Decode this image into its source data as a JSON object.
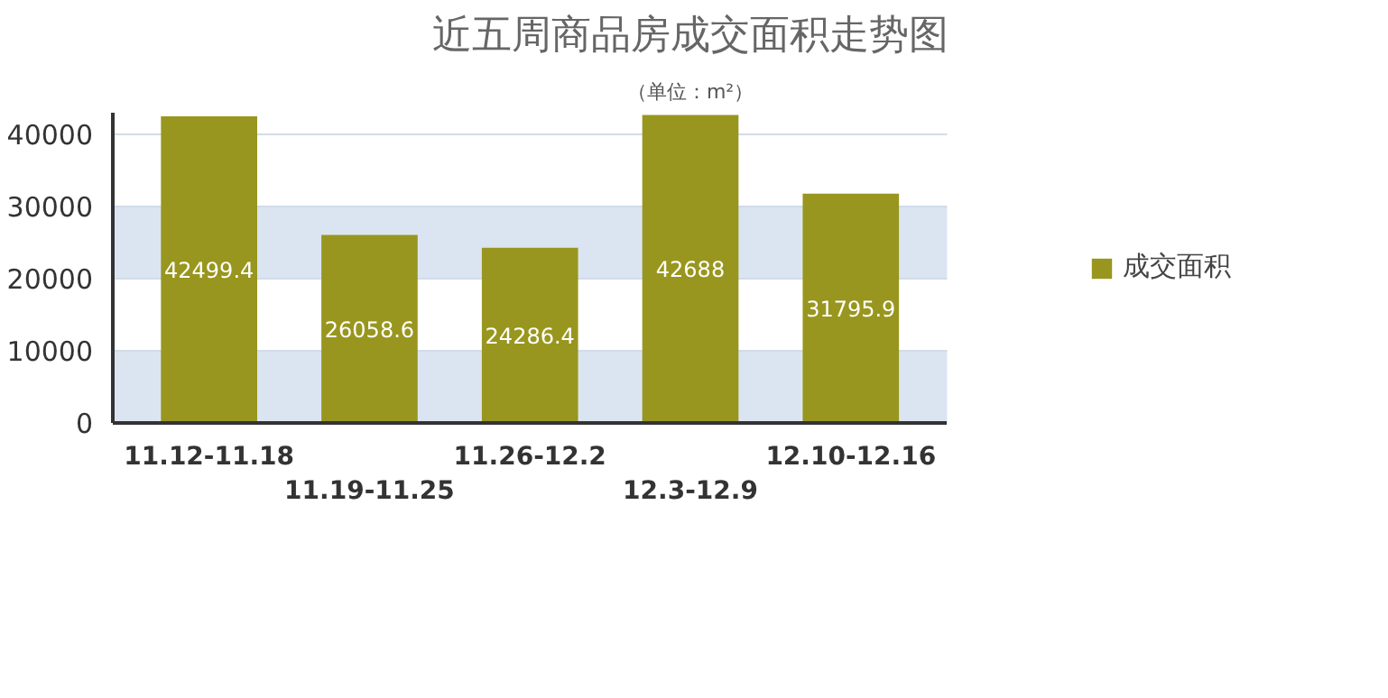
{
  "chart_data": {
    "type": "bar",
    "title": "近五周商品房成交面积走势图",
    "subtitle": "（单位：m²）",
    "categories": [
      "11.12-11.18",
      "11.19-11.25",
      "11.26-12.2",
      "12.3-12.9",
      "12.10-12.16"
    ],
    "series": [
      {
        "name": "成交面积",
        "color": "#98961e",
        "values": [
          42499.4,
          26058.6,
          24286.4,
          42688,
          31795.9
        ]
      }
    ],
    "ylim": [
      0,
      43000
    ],
    "yticks": [
      0,
      10000,
      20000,
      30000,
      40000
    ],
    "grid": "y",
    "legend": "right",
    "data_labels": true
  }
}
